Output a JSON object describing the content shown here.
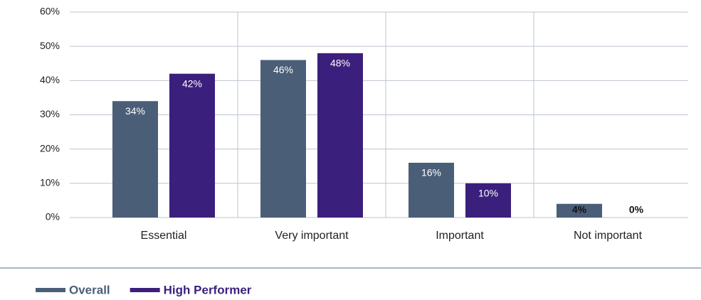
{
  "chart_data": {
    "type": "bar",
    "categories": [
      "Essential",
      "Very important",
      "Important",
      "Not important"
    ],
    "series": [
      {
        "name": "Overall",
        "color": "#4a5e78",
        "values": [
          34,
          46,
          16,
          4
        ],
        "value_labels": [
          "34%",
          "46%",
          "16%",
          "4%"
        ]
      },
      {
        "name": "High Performer",
        "color": "#3b1f7d",
        "values": [
          42,
          48,
          10,
          0
        ],
        "value_labels": [
          "42%",
          "48%",
          "10%",
          "0%"
        ]
      }
    ],
    "ylim": [
      0,
      60
    ],
    "yticks": [
      {
        "value": 0,
        "label": "0%"
      },
      {
        "value": 10,
        "label": "10%"
      },
      {
        "value": 20,
        "label": "20%"
      },
      {
        "value": 30,
        "label": "30%"
      },
      {
        "value": 40,
        "label": "40%"
      },
      {
        "value": 50,
        "label": "50%"
      },
      {
        "value": 60,
        "label": "60%"
      }
    ],
    "grid": true,
    "legend": "bottom-left"
  }
}
